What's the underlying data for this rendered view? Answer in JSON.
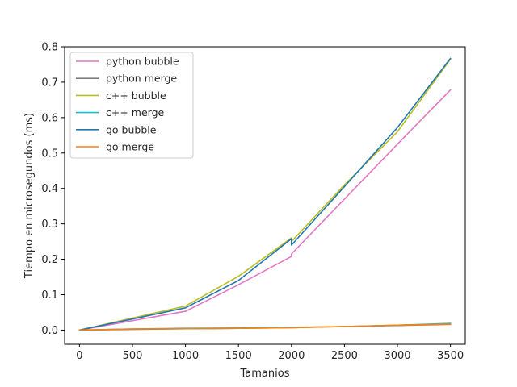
{
  "chart_data": {
    "type": "line",
    "xlabel": "Tamanios",
    "ylabel": "Tiempo en microsegundos (ms)",
    "xlim": [
      -140,
      3640
    ],
    "ylim": [
      -0.04,
      0.8
    ],
    "xticks": [
      0,
      500,
      1000,
      1500,
      2000,
      2500,
      3000,
      3500
    ],
    "xtick_labels": [
      "0",
      "500",
      "1000",
      "1500",
      "2000",
      "2500",
      "3000",
      "3500"
    ],
    "yticks": [
      0.0,
      0.1,
      0.2,
      0.3,
      0.4,
      0.5,
      0.6,
      0.7,
      0.8
    ],
    "ytick_labels": [
      "0.0",
      "0.1",
      "0.2",
      "0.3",
      "0.4",
      "0.5",
      "0.6",
      "0.7",
      "0.8"
    ],
    "grid": false,
    "legend_position": "top-left",
    "series": [
      {
        "name": "python bubble",
        "color": "#e377c2",
        "points": [
          [
            0,
            0.0
          ],
          [
            1000,
            0.053
          ],
          [
            1500,
            0.128
          ],
          [
            2000,
            0.208
          ],
          [
            2000,
            0.215
          ],
          [
            2500,
            0.37
          ],
          [
            3000,
            0.525
          ],
          [
            3500,
            0.678
          ]
        ]
      },
      {
        "name": "python merge",
        "color": "#7f7f7f",
        "points": [
          [
            0,
            0.0
          ],
          [
            500,
            0.002
          ],
          [
            1000,
            0.004
          ],
          [
            1500,
            0.005
          ],
          [
            2000,
            0.007
          ],
          [
            2500,
            0.01
          ],
          [
            3000,
            0.013
          ],
          [
            3500,
            0.016
          ]
        ]
      },
      {
        "name": "c++ bubble",
        "color": "#bcbd22",
        "points": [
          [
            0,
            0.0
          ],
          [
            1000,
            0.068
          ],
          [
            1500,
            0.152
          ],
          [
            2000,
            0.26
          ],
          [
            2000,
            0.25
          ],
          [
            2500,
            0.41
          ],
          [
            3000,
            0.56
          ],
          [
            3500,
            0.765
          ]
        ]
      },
      {
        "name": "c++ merge",
        "color": "#17becf",
        "points": [
          [
            0,
            0.0
          ],
          [
            500,
            0.003
          ],
          [
            1000,
            0.005
          ],
          [
            1500,
            0.006
          ],
          [
            2000,
            0.008
          ],
          [
            2500,
            0.01
          ],
          [
            3000,
            0.014
          ],
          [
            3500,
            0.019
          ]
        ]
      },
      {
        "name": "go bubble",
        "color": "#1f77b4",
        "points": [
          [
            0,
            0.0
          ],
          [
            1000,
            0.063
          ],
          [
            1500,
            0.14
          ],
          [
            2000,
            0.258
          ],
          [
            2000,
            0.24
          ],
          [
            2500,
            0.405
          ],
          [
            3000,
            0.572
          ],
          [
            3500,
            0.767
          ]
        ]
      },
      {
        "name": "go merge",
        "color": "#ff7f0e",
        "points": [
          [
            0,
            0.0
          ],
          [
            500,
            0.003
          ],
          [
            1000,
            0.004
          ],
          [
            1500,
            0.005
          ],
          [
            2000,
            0.007
          ],
          [
            2500,
            0.01
          ],
          [
            3000,
            0.014
          ],
          [
            3500,
            0.017
          ]
        ]
      }
    ]
  }
}
